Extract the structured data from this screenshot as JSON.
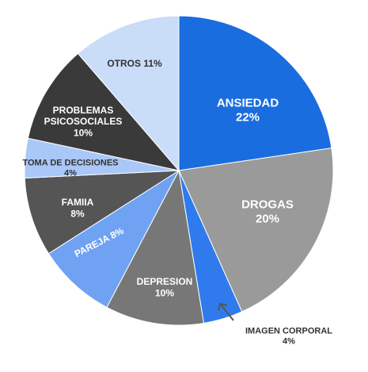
{
  "chart_data": {
    "type": "pie",
    "title": "",
    "slices": [
      {
        "name": "ANSIEDAD",
        "value_label": "22%",
        "value": 22,
        "color": "#1A6DDE",
        "text_color": "#ffffff",
        "font_size": 15
      },
      {
        "name": "DROGAS",
        "value_label": "20%",
        "value": 20,
        "color": "#9A9A9A",
        "text_color": "#ffffff",
        "font_size": 15
      },
      {
        "name": "IMAGEN CORPORAL",
        "value_label": "4%",
        "value": 4,
        "color": "#2F7BEE",
        "text_color": "#333333",
        "font_size": 11
      },
      {
        "name": "DEPRESION",
        "value_label": "10%",
        "value": 10,
        "color": "#777777",
        "text_color": "#ffffff",
        "font_size": 12
      },
      {
        "name": "PAREJA",
        "value_label": "8%",
        "value": 8,
        "color": "#6FA2F2",
        "text_color": "#ffffff",
        "font_size": 12
      },
      {
        "name": "FAMIIA",
        "value_label": "8%",
        "value": 8,
        "color": "#555555",
        "text_color": "#ffffff",
        "font_size": 12
      },
      {
        "name": "TOMA DE DECISIONES",
        "value_label": "4%",
        "value": 4,
        "color": "#A9C7F7",
        "text_color": "#333333",
        "font_size": 11
      },
      {
        "name": "PROBLEMAS PSICOSOCIALES",
        "value_label": "10%",
        "value": 10,
        "color": "#3A3A3A",
        "text_color": "#ffffff",
        "font_size": 12
      },
      {
        "name": "OTROS",
        "value_label": "11%",
        "value": 11,
        "color": "#C9DCF8",
        "text_color": "#333333",
        "font_size": 12
      }
    ],
    "legend": "none"
  }
}
